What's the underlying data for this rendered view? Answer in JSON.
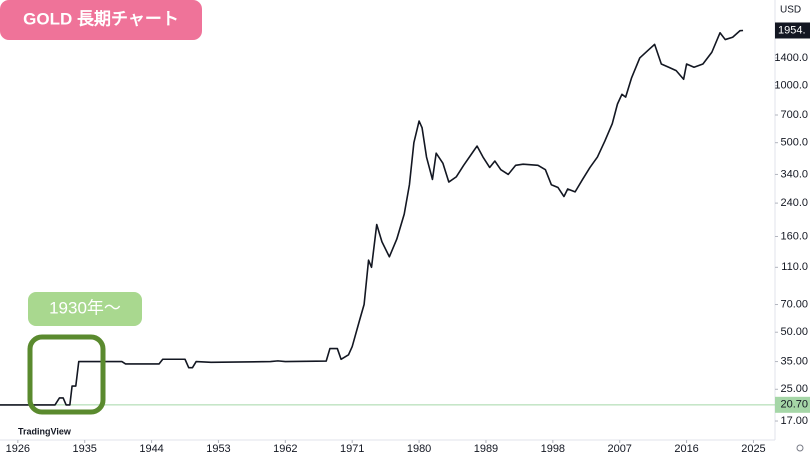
{
  "chart_data": {
    "type": "line",
    "title": "GOLD 長期チャート",
    "annotation": "1930年〜",
    "y_axis_label": "USD",
    "watermark": "TradingView",
    "log_scale": true,
    "x": [
      1923.6,
      1931.0,
      1931.6,
      1932.1,
      1932.5,
      1933.0,
      1933.3,
      1933.8,
      1934.2,
      1940,
      1940.5,
      1945,
      1945.5,
      1948.5,
      1949,
      1949.5,
      1950,
      1952,
      1960,
      1961,
      1962,
      1967.5,
      1968,
      1969,
      1969.5,
      1970.5,
      1971,
      1972,
      1972.6,
      1973.2,
      1973.6,
      1974.3,
      1975,
      1976,
      1977,
      1978,
      1978.7,
      1979.3,
      1980,
      1980.4,
      1981,
      1981.8,
      1982.3,
      1983.2,
      1984,
      1985,
      1986,
      1987.3,
      1987.8,
      1988.6,
      1989.5,
      1990.2,
      1991,
      1992,
      1993,
      1994,
      1996,
      1997,
      1997.8,
      1998.7,
      1999.5,
      2000,
      2001,
      2002,
      2003,
      2004,
      2005,
      2006,
      2006.7,
      2007.3,
      2007.8,
      2008.6,
      2009.7,
      2011,
      2011.7,
      2012.6,
      2013.6,
      2014.6,
      2015.6,
      2016,
      2017,
      2018.2,
      2019.4,
      2020.5,
      2021.2,
      2022.2,
      2023.2,
      2023.6
    ],
    "series": [
      {
        "color": "#131722",
        "values": [
          20.67,
          20.67,
          22.5,
          22.5,
          20.67,
          20.67,
          26,
          26,
          35,
          35,
          34,
          34,
          36,
          36,
          32.5,
          32.5,
          35,
          34.7,
          35,
          35.3,
          35,
          35.2,
          41,
          41,
          36,
          38,
          42,
          58,
          70,
          120,
          110,
          185,
          150,
          125,
          155,
          210,
          300,
          500,
          650,
          600,
          420,
          320,
          440,
          390,
          310,
          330,
          380,
          450,
          480,
          420,
          370,
          400,
          360,
          340,
          380,
          385,
          380,
          360,
          300,
          290,
          260,
          285,
          275,
          320,
          370,
          420,
          510,
          630,
          800,
          900,
          870,
          1100,
          1400,
          1560,
          1650,
          1300,
          1250,
          1200,
          1080,
          1300,
          1250,
          1300,
          1500,
          1900,
          1750,
          1800,
          1950,
          1954
        ]
      }
    ],
    "xlim": [
      1923.6,
      2027.9
    ],
    "xticks": [
      1926,
      1935,
      1944,
      1953,
      1962,
      1971,
      1980,
      1989,
      1998,
      2007,
      2016,
      2025
    ],
    "ylim": [
      13.5,
      2830
    ],
    "yticks": [
      {
        "value": 1400,
        "label": "1400.0"
      },
      {
        "value": 1000,
        "label": "1000.0"
      },
      {
        "value": 700,
        "label": "700.0"
      },
      {
        "value": 500,
        "label": "500.0"
      },
      {
        "value": 340,
        "label": "340.0"
      },
      {
        "value": 240,
        "label": "240.0"
      },
      {
        "value": 160,
        "label": "160.0"
      },
      {
        "value": 110,
        "label": "110.0"
      },
      {
        "value": 70,
        "label": "70.00"
      },
      {
        "value": 50,
        "label": "50.00"
      },
      {
        "value": 35,
        "label": "35.00"
      },
      {
        "value": 25,
        "label": "25.00"
      },
      {
        "value": 17,
        "label": "17.00"
      }
    ],
    "last_price": {
      "value": 1954,
      "label": "1954."
    },
    "price_line": {
      "value": 20.7,
      "label": "20.70",
      "color": "#a5d6a7"
    }
  }
}
